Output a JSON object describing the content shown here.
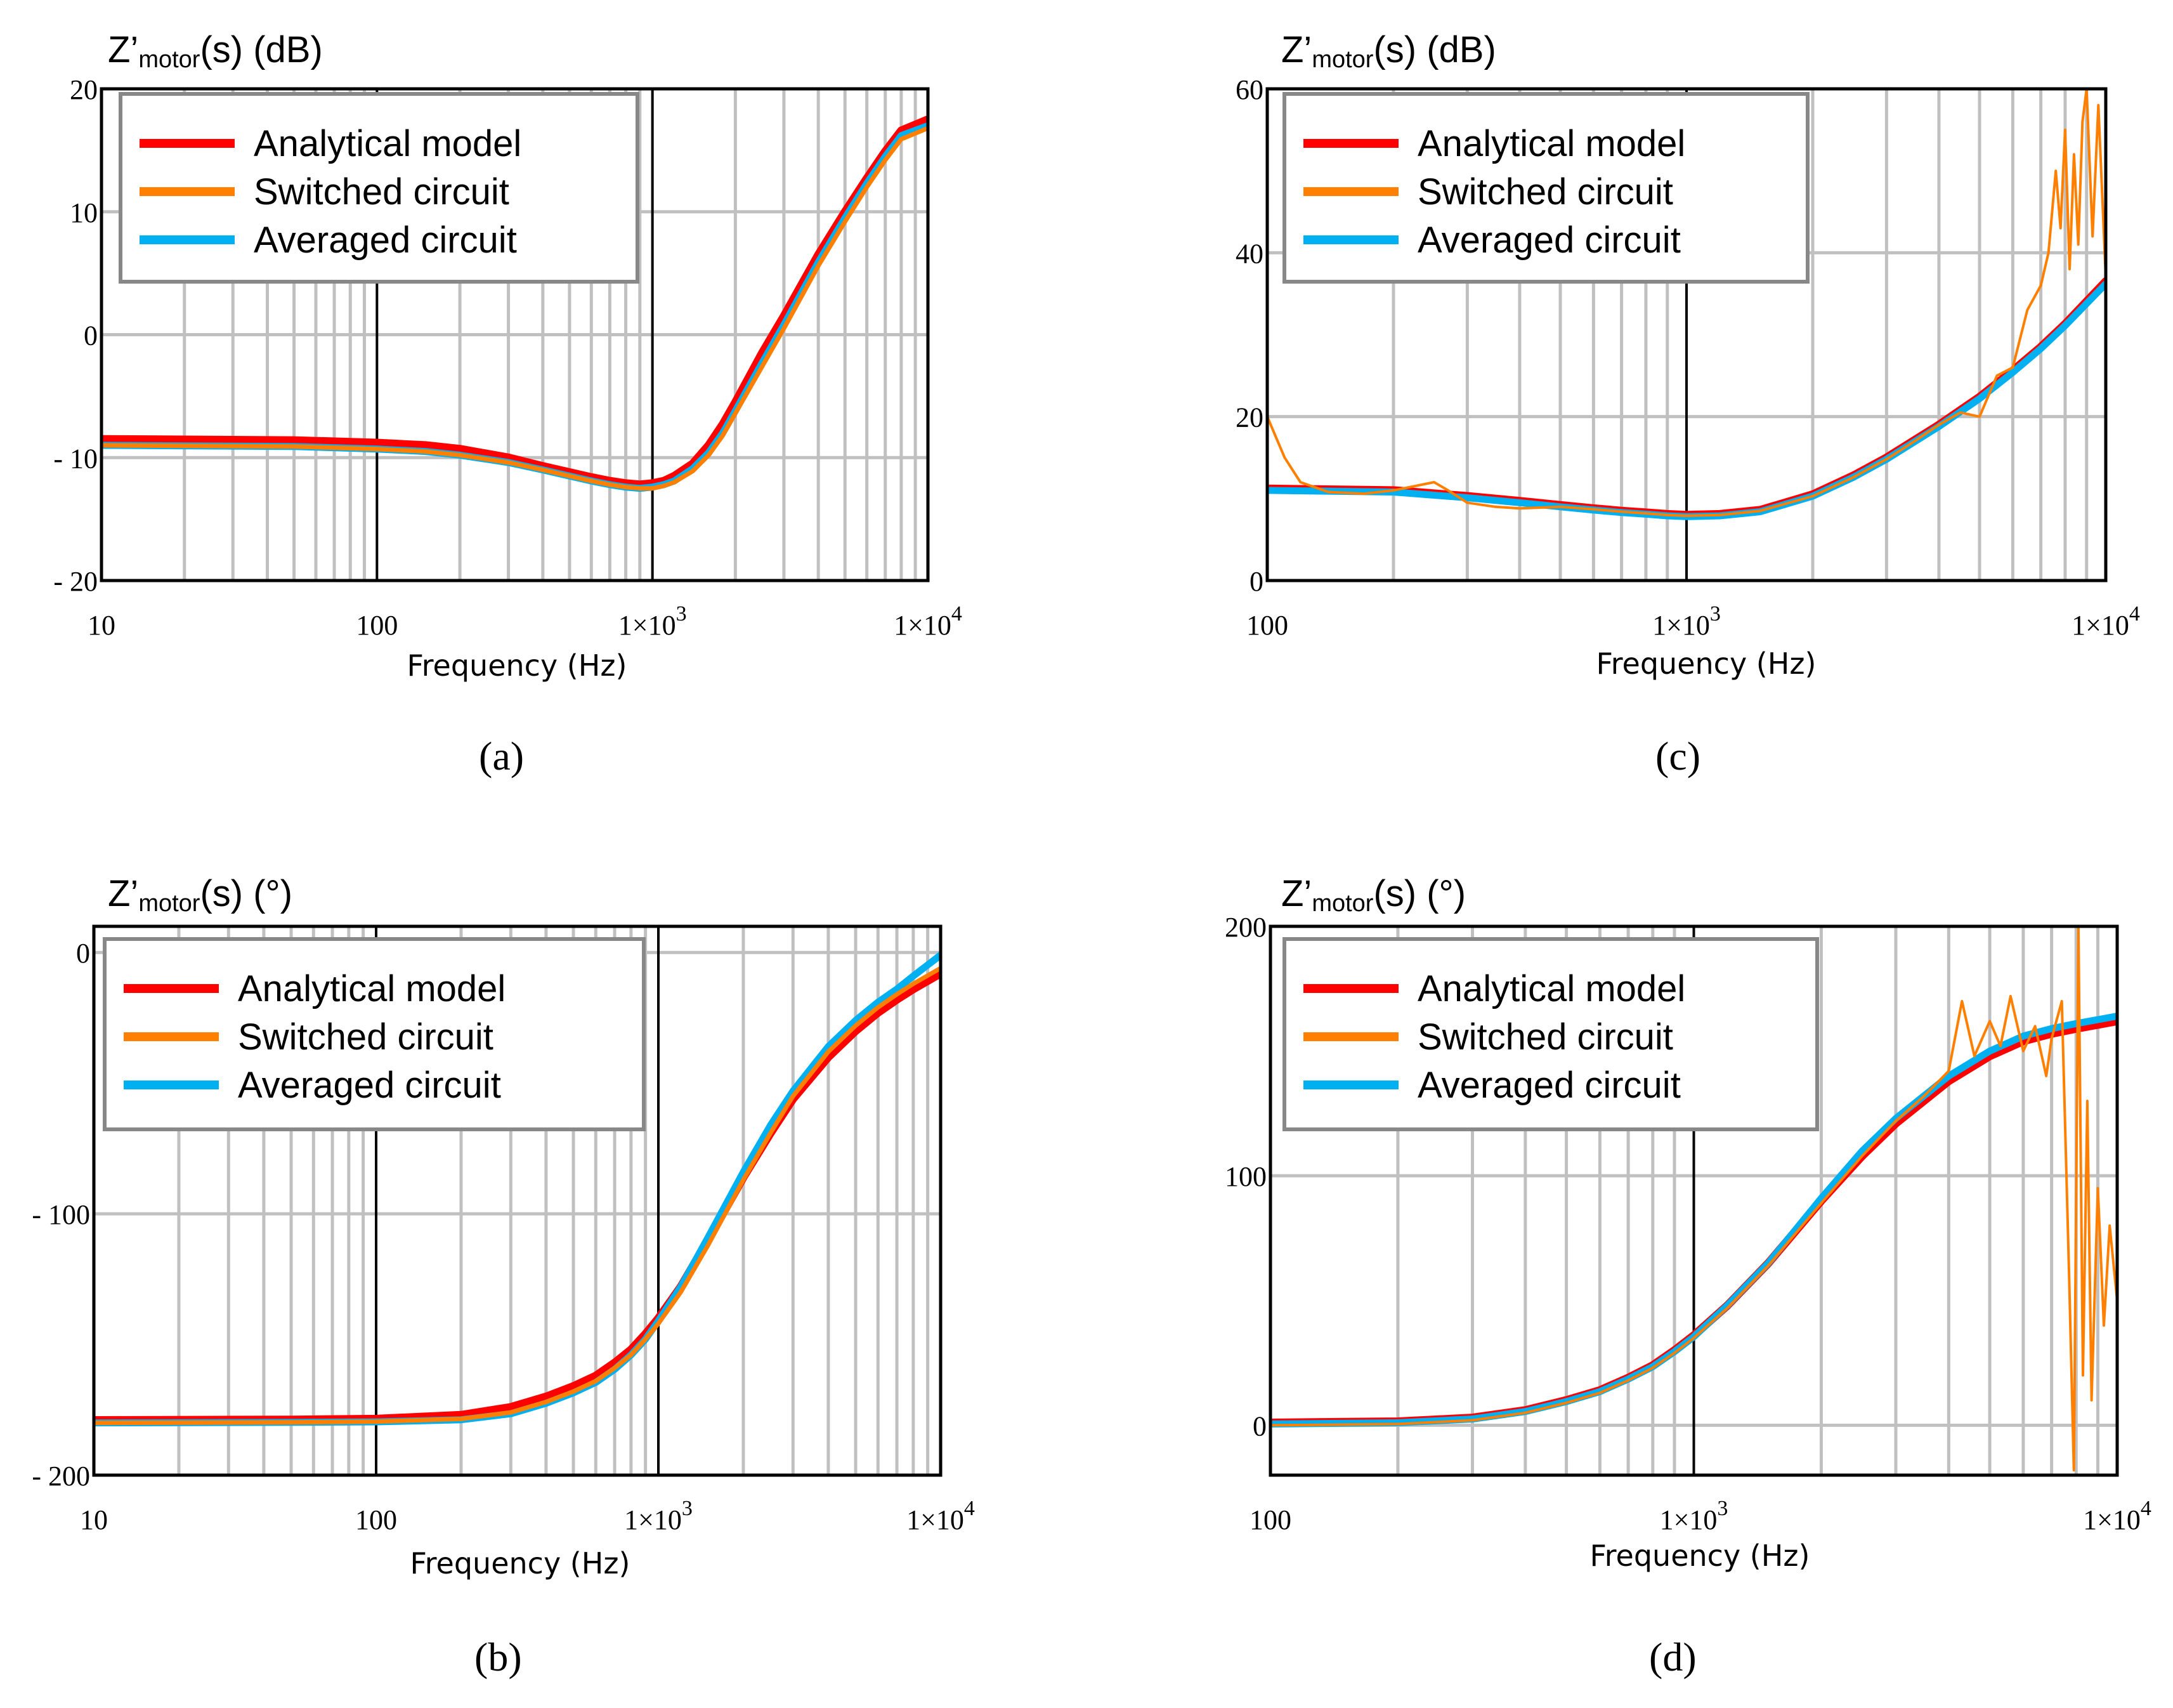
{
  "figure": {
    "colors": {
      "analytical": "#ff0000",
      "switched": "#ff7f00",
      "averaged": "#00b0f0",
      "grid": "#c0c0c0",
      "decade_grid": "#000000"
    },
    "legend_labels": [
      "Analytical model",
      "Switched circuit",
      "Averaged circuit"
    ]
  },
  "chart_data": [
    {
      "id": "a",
      "caption": "(a)",
      "type": "line",
      "ylabel_main": "Z’",
      "ylabel_sub": "motor",
      "ylabel_suffix": "(s) (dB)",
      "xlabel": "Frequency (Hz)",
      "xscale": "log",
      "xlim": [
        10,
        10000
      ],
      "ylim": [
        -20,
        20
      ],
      "xticks": [
        10,
        100,
        1000,
        10000
      ],
      "xtick_labels": [
        {
          "base": "10",
          "exp": ""
        },
        {
          "base": "100",
          "exp": ""
        },
        {
          "base": "1×10",
          "exp": "3"
        },
        {
          "base": "1×10",
          "exp": "4"
        }
      ],
      "yticks": [
        -20,
        -10,
        0,
        10,
        20
      ],
      "ytick_labels": [
        "- 20",
        "- 10",
        "0",
        "10",
        "20"
      ],
      "legend": "top-left",
      "series": [
        {
          "name": "Analytical model",
          "x": [
            10,
            50,
            100,
            150,
            200,
            300,
            400,
            500,
            600,
            700,
            800,
            900,
            1000,
            1100,
            1200,
            1400,
            1600,
            1800,
            2000,
            2500,
            3000,
            4000,
            5000,
            6000,
            7000,
            8000,
            10000
          ],
          "y": [
            -8.5,
            -8.6,
            -8.8,
            -9.0,
            -9.3,
            -10.0,
            -10.7,
            -11.2,
            -11.6,
            -11.9,
            -12.1,
            -12.2,
            -12.1,
            -11.9,
            -11.5,
            -10.5,
            -9.0,
            -7.3,
            -5.5,
            -1.5,
            1.5,
            6.5,
            10.0,
            12.7,
            14.9,
            16.6,
            17.5
          ]
        },
        {
          "name": "Switched circuit",
          "x": [
            10,
            50,
            100,
            150,
            200,
            300,
            400,
            500,
            600,
            700,
            800,
            900,
            1000,
            1100,
            1200,
            1400,
            1600,
            1800,
            2000,
            2500,
            3000,
            4000,
            5000,
            6000,
            7000,
            8000,
            10000
          ],
          "y": [
            -9.0,
            -9.1,
            -9.3,
            -9.5,
            -9.8,
            -10.4,
            -11.0,
            -11.5,
            -11.9,
            -12.2,
            -12.4,
            -12.5,
            -12.5,
            -12.3,
            -12.0,
            -11.1,
            -9.8,
            -8.2,
            -6.4,
            -2.6,
            0.5,
            5.6,
            9.2,
            12.0,
            14.2,
            15.9,
            16.8
          ]
        },
        {
          "name": "Averaged circuit",
          "x": [
            10,
            50,
            100,
            150,
            200,
            300,
            400,
            500,
            600,
            700,
            800,
            900,
            1000,
            1100,
            1200,
            1400,
            1600,
            1800,
            2000,
            2500,
            3000,
            4000,
            5000,
            6000,
            7000,
            8000,
            10000
          ],
          "y": [
            -9.0,
            -9.1,
            -9.3,
            -9.5,
            -9.8,
            -10.4,
            -11.0,
            -11.5,
            -11.9,
            -12.2,
            -12.4,
            -12.5,
            -12.4,
            -12.2,
            -11.9,
            -10.9,
            -9.6,
            -8.0,
            -6.2,
            -2.3,
            0.8,
            5.9,
            9.5,
            12.3,
            14.5,
            16.2,
            17.0
          ]
        }
      ]
    },
    {
      "id": "c",
      "caption": "(c)",
      "type": "line",
      "ylabel_main": "Z’",
      "ylabel_sub": "motor",
      "ylabel_suffix": "(s) (dB)",
      "xlabel": "Frequency (Hz)",
      "xscale": "log",
      "xlim": [
        100,
        10000
      ],
      "ylim": [
        0,
        60
      ],
      "xticks": [
        100,
        1000,
        10000
      ],
      "xtick_labels": [
        {
          "base": "100",
          "exp": ""
        },
        {
          "base": "1×10",
          "exp": "3"
        },
        {
          "base": "1×10",
          "exp": "4"
        }
      ],
      "yticks": [
        0,
        20,
        40,
        60
      ],
      "ytick_labels": [
        "0",
        "20",
        "40",
        "60"
      ],
      "legend": "top-left",
      "series": [
        {
          "name": "Analytical model",
          "x": [
            100,
            200,
            300,
            400,
            500,
            600,
            700,
            800,
            900,
            1000,
            1200,
            1500,
            2000,
            2500,
            3000,
            4000,
            5000,
            6000,
            7000,
            8000,
            10000
          ],
          "y": [
            11.2,
            11.0,
            10.3,
            9.7,
            9.2,
            8.8,
            8.5,
            8.3,
            8.1,
            8.0,
            8.1,
            8.6,
            10.5,
            12.8,
            15.0,
            19.0,
            22.4,
            25.6,
            28.5,
            31.3,
            36.5
          ]
        },
        {
          "name": "Switched circuit",
          "x": [
            100,
            110,
            120,
            140,
            170,
            200,
            250,
            270,
            300,
            350,
            400,
            500,
            600,
            700,
            800,
            900,
            1000,
            1200,
            1500,
            2000,
            2500,
            3000,
            3500,
            4000,
            4500,
            5000,
            5500,
            6000,
            6500,
            7000,
            7300,
            7600,
            7800,
            8000,
            8200,
            8400,
            8600,
            8800,
            9000,
            9300,
            9600,
            10000
          ],
          "y": [
            20.0,
            15.0,
            12.0,
            10.8,
            10.6,
            11.0,
            12.0,
            11.0,
            9.5,
            9.0,
            8.8,
            9.0,
            8.7,
            8.4,
            8.2,
            8.0,
            7.9,
            8.0,
            8.5,
            10.3,
            12.6,
            14.8,
            17.0,
            19.0,
            20.5,
            20.0,
            25.0,
            26.0,
            33.0,
            36.0,
            40.0,
            50.0,
            43.0,
            55.0,
            38.0,
            52.0,
            41.0,
            56.0,
            60.0,
            42.0,
            58.0,
            37.0
          ]
        },
        {
          "name": "Averaged circuit",
          "x": [
            100,
            200,
            300,
            400,
            500,
            600,
            700,
            800,
            900,
            1000,
            1200,
            1500,
            2000,
            2500,
            3000,
            4000,
            5000,
            6000,
            7000,
            8000,
            10000
          ],
          "y": [
            11.0,
            10.8,
            10.1,
            9.5,
            9.0,
            8.6,
            8.3,
            8.1,
            7.9,
            7.8,
            7.9,
            8.4,
            10.3,
            12.6,
            14.8,
            18.8,
            22.2,
            25.4,
            28.3,
            31.1,
            36.2
          ]
        }
      ]
    },
    {
      "id": "b",
      "caption": "(b)",
      "type": "line",
      "ylabel_main": "Z’",
      "ylabel_sub": "motor",
      "ylabel_suffix": "(s) (°)",
      "xlabel": "Frequency (Hz)",
      "xscale": "log",
      "xlim": [
        10,
        10000
      ],
      "ylim": [
        -200,
        10
      ],
      "xticks": [
        10,
        100,
        1000,
        10000
      ],
      "xtick_labels": [
        {
          "base": "10",
          "exp": ""
        },
        {
          "base": "100",
          "exp": ""
        },
        {
          "base": "1×10",
          "exp": "3"
        },
        {
          "base": "1×10",
          "exp": "4"
        }
      ],
      "yticks": [
        -200,
        -100,
        0
      ],
      "ytick_labels": [
        "- 200",
        "- 100",
        "0"
      ],
      "legend": "top-left",
      "series": [
        {
          "name": "Analytical model",
          "x": [
            10,
            50,
            100,
            200,
            300,
            400,
            500,
            600,
            700,
            800,
            900,
            1000,
            1200,
            1500,
            2000,
            2500,
            3000,
            4000,
            5000,
            6000,
            7000,
            8000,
            10000
          ],
          "y": [
            -179,
            -178.8,
            -178.5,
            -177,
            -174,
            -170,
            -166,
            -162,
            -157,
            -152,
            -146,
            -140,
            -128,
            -110,
            -86,
            -69,
            -56,
            -40,
            -30,
            -23,
            -18,
            -14,
            -8
          ]
        },
        {
          "name": "Switched circuit",
          "x": [
            10,
            50,
            100,
            200,
            300,
            400,
            500,
            600,
            700,
            800,
            900,
            1000,
            1200,
            1500,
            2000,
            2500,
            3000,
            4000,
            5000,
            6000,
            7000,
            8000,
            10000
          ],
          "y": [
            -180,
            -179.8,
            -179.5,
            -178.5,
            -176,
            -172,
            -168,
            -164,
            -159,
            -154,
            -148,
            -142,
            -130,
            -112,
            -87,
            -69,
            -55,
            -38,
            -28,
            -21,
            -16,
            -12,
            -6
          ]
        },
        {
          "name": "Averaged circuit",
          "x": [
            10,
            50,
            100,
            200,
            300,
            400,
            500,
            600,
            700,
            800,
            900,
            1000,
            1200,
            1500,
            2000,
            2500,
            3000,
            4000,
            5000,
            6000,
            7000,
            8000,
            10000
          ],
          "y": [
            -180,
            -179.8,
            -179.6,
            -178.8,
            -176.5,
            -172.5,
            -168.5,
            -164.5,
            -159.5,
            -154,
            -148,
            -141,
            -128,
            -109,
            -84,
            -66,
            -53,
            -36,
            -26,
            -19,
            -14,
            -9,
            -1
          ]
        }
      ]
    },
    {
      "id": "d",
      "caption": "(d)",
      "type": "line",
      "ylabel_main": "Z’",
      "ylabel_sub": "motor",
      "ylabel_suffix": "(s) (°)",
      "xlabel": "Frequency (Hz)",
      "xscale": "log",
      "xlim": [
        100,
        10000
      ],
      "ylim": [
        -20,
        200
      ],
      "xticks": [
        100,
        1000,
        10000
      ],
      "xtick_labels": [
        {
          "base": "100",
          "exp": ""
        },
        {
          "base": "1×10",
          "exp": "3"
        },
        {
          "base": "1×10",
          "exp": "4"
        }
      ],
      "yticks": [
        0,
        100,
        200
      ],
      "ytick_labels": [
        "0",
        "100",
        "200"
      ],
      "legend": "top-left",
      "series": [
        {
          "name": "Analytical model",
          "x": [
            100,
            200,
            300,
            400,
            500,
            600,
            700,
            800,
            900,
            1000,
            1200,
            1500,
            2000,
            2500,
            3000,
            4000,
            5000,
            6000,
            7000,
            8000,
            10000
          ],
          "y": [
            1,
            1.5,
            3,
            6,
            10,
            14,
            19,
            24,
            30,
            36,
            48,
            65,
            90,
            108,
            121,
            138,
            148,
            154,
            157,
            159,
            162
          ]
        },
        {
          "name": "Switched circuit",
          "x": [
            100,
            200,
            300,
            400,
            500,
            600,
            700,
            800,
            900,
            1000,
            1200,
            1500,
            2000,
            2500,
            3000,
            3500,
            4000,
            4300,
            4600,
            5000,
            5300,
            5600,
            6000,
            6400,
            6800,
            7000,
            7400,
            7700,
            7900,
            8100,
            8300,
            8500,
            8700,
            9000,
            9300,
            9600,
            10000
          ],
          "y": [
            0,
            0.5,
            2,
            5,
            9,
            13,
            18,
            23,
            29,
            35,
            47,
            64,
            89,
            108,
            122,
            132,
            142,
            170,
            148,
            162,
            152,
            172,
            150,
            160,
            140,
            155,
            170,
            60,
            -18,
            200,
            20,
            130,
            10,
            95,
            40,
            80,
            50
          ]
        },
        {
          "name": "Averaged circuit",
          "x": [
            100,
            200,
            300,
            400,
            500,
            600,
            700,
            800,
            900,
            1000,
            1200,
            1500,
            2000,
            2500,
            3000,
            4000,
            5000,
            6000,
            7000,
            8000,
            10000
          ],
          "y": [
            0.5,
            1,
            2.5,
            5.5,
            9.5,
            13.5,
            18.5,
            23.5,
            29.5,
            35.5,
            48,
            65,
            91,
            110,
            123,
            140,
            150,
            156,
            159,
            161,
            164
          ]
        }
      ]
    }
  ]
}
